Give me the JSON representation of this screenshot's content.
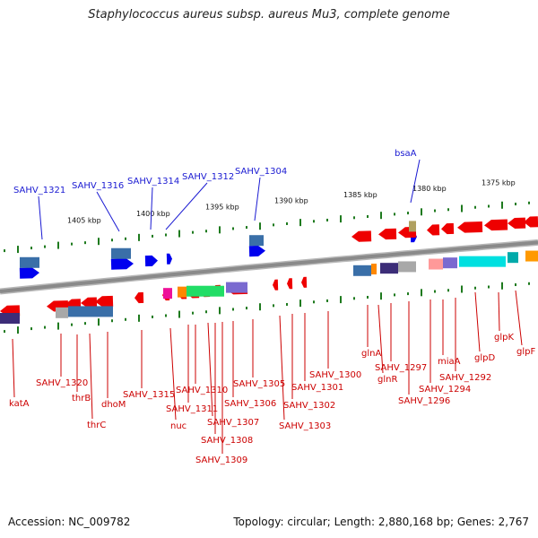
{
  "title": "Staphylococcus aureus subsp. aureus Mu3, complete genome",
  "footer": {
    "accession": "Accession: NC_009782",
    "summary": "Topology: circular; Length: 2,880,168 bp; Genes: 2,767"
  },
  "scale_labels": [
    "1405 kbp",
    "1400 kbp",
    "1395 kbp",
    "1390 kbp",
    "1385 kbp",
    "1380 kbp",
    "1375 kbp"
  ],
  "top_labels": [
    "SAHV_1321",
    "SAHV_1316",
    "SAHV_1314",
    "SAHV_1312",
    "SAHV_1304",
    "bsaA"
  ],
  "bottom_labels": [
    "katA",
    "SAHV_1320",
    "thrB",
    "thrC",
    "dhoM",
    "SAHV_1315",
    "nuc",
    "SAHV_1311",
    "SAHV_1310",
    "SAHV_1307",
    "SAHV_1308",
    "SAHV_1309",
    "SAHV_1306",
    "SAHV_1305",
    "SAHV_1303",
    "SAHV_1302",
    "SAHV_1301",
    "SAHV_1300",
    "glnA",
    "glnR",
    "SAHV_1297",
    "SAHV_1296",
    "SAHV_1294",
    "miaA",
    "SAHV_1292",
    "glpD",
    "glpK",
    "glpF"
  ],
  "colors": {
    "backbone": "#8a8a8a",
    "forward_cds": "#0000ee",
    "reverse_cds": "#ee0000",
    "tick": "#1e7a1e",
    "label_blue": "#1a1ad2",
    "label_red": "#cc0000"
  }
}
